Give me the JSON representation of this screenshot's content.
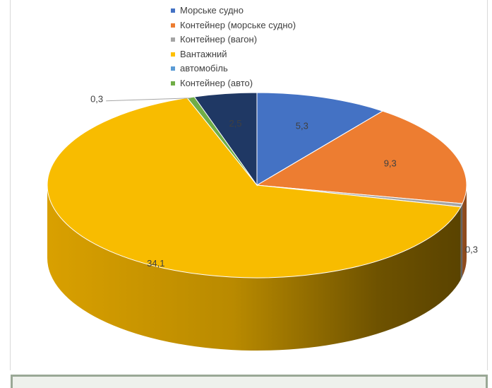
{
  "chart_data": {
    "type": "pie",
    "style": "3d",
    "title": "",
    "legend_position": "top",
    "categories": [
      "Морське судно",
      "Контейнер (морське судно)",
      "Контейнер (вагон)",
      "Вантажний",
      "автомобіль",
      "Контейнер (авто)"
    ],
    "values": [
      5.3,
      9.3,
      0.3,
      34.1,
      2.5,
      0.3
    ],
    "labels": [
      "5,3",
      "9,3",
      "0,3",
      "34,1",
      "2,5",
      "0,3"
    ],
    "legend_colors": [
      "#4472c4",
      "#ed7d31",
      "#a5a5a5",
      "#ffc000",
      "#5b9bd5",
      "#70ad47"
    ],
    "slice_colors": [
      "#4472c4",
      "#ed7d31",
      "#a5a5a5",
      "#f8bc00",
      "#1f3864",
      "#70ad47"
    ]
  }
}
